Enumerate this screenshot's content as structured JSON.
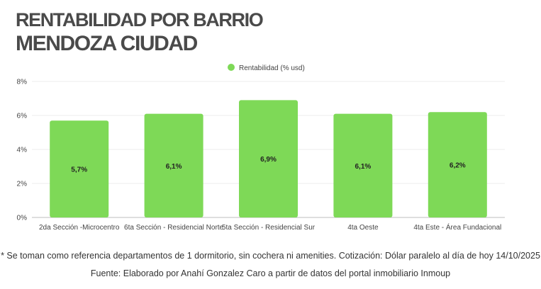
{
  "header": {
    "title": "RENTABILIDAD POR BARRIO",
    "subtitle": "MENDOZA CIUDAD"
  },
  "footer": {
    "note": "* Se toman como referencia departamentos de 1 dormitorio, sin cochera ni amenities. Cotización: Dólar paralelo al día de hoy 14/10/2025",
    "source": "Fuente: Elaborado por Anahí Gonzalez Caro a partir de datos del portal inmobiliario Inmoup"
  },
  "chart_data": {
    "type": "bar",
    "title": "",
    "xlabel": "",
    "ylabel": "",
    "categories": [
      "2da Sección -Microcentro",
      "6ta Sección - Residencial Norte",
      "5ta Sección - Residencial Sur",
      "4ta Oeste",
      "4ta Este - Área Fundacional"
    ],
    "series": [
      {
        "name": "Rentabilidad (% usd)",
        "values": [
          5.7,
          6.1,
          6.9,
          6.1,
          6.2
        ],
        "labels": [
          "5,7%",
          "6,1%",
          "6,9%",
          "6,1%",
          "6,2%"
        ],
        "color": "#7ed957"
      }
    ],
    "ylim": [
      0,
      8
    ],
    "yticks": [
      "0%",
      "2%",
      "4%",
      "6%",
      "8%"
    ],
    "grid": true,
    "legend": "top-center"
  }
}
